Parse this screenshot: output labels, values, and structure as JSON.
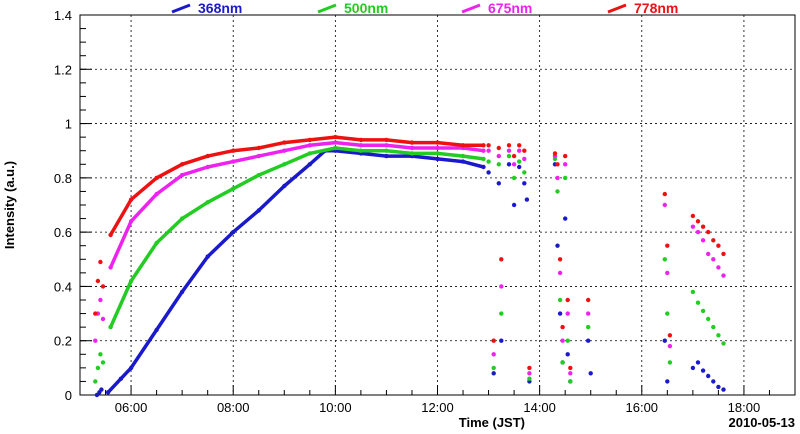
{
  "chart_data": {
    "type": "scatter",
    "title": "",
    "xlabel": "Time (JST)",
    "ylabel": "Intensity (a.u.)",
    "date_label": "2010-05-13",
    "xlim": [
      5.0,
      19.0
    ],
    "ylim": [
      0,
      1.4
    ],
    "grid": true,
    "legend_position": "top",
    "x_ticks": [
      6,
      8,
      10,
      12,
      14,
      16,
      18
    ],
    "x_tick_labels": [
      "06:00",
      "08:00",
      "10:00",
      "12:00",
      "14:00",
      "16:00",
      "18:00"
    ],
    "y_ticks": [
      0,
      0.2,
      0.4,
      0.6,
      0.8,
      1.0,
      1.2,
      1.4
    ],
    "y_tick_labels": [
      "0",
      "0.2",
      "0.4",
      "0.6",
      "0.8",
      "1",
      "1.2",
      "1.4"
    ],
    "series": [
      {
        "name": "368nm",
        "color": "#1a1acc",
        "x": [
          5.33,
          5.38,
          5.42,
          5.55,
          5.8,
          6.0,
          6.5,
          7.0,
          7.5,
          8.0,
          8.5,
          9.0,
          9.5,
          9.8,
          10.0,
          10.5,
          11.0,
          11.5,
          12.0,
          12.5,
          12.9,
          13.0,
          13.1,
          13.2,
          13.25,
          13.4,
          13.5,
          13.6,
          13.7,
          13.75,
          13.8,
          14.3,
          14.35,
          14.4,
          14.45,
          14.5,
          14.55,
          14.6,
          14.95,
          15.0,
          16.45,
          16.5,
          17.0,
          17.1,
          17.2,
          17.3,
          17.4,
          17.5,
          17.6
        ],
        "y": [
          0.0,
          0.01,
          0.02,
          0.01,
          0.06,
          0.1,
          0.24,
          0.38,
          0.51,
          0.6,
          0.68,
          0.77,
          0.85,
          0.9,
          0.9,
          0.89,
          0.88,
          0.88,
          0.87,
          0.86,
          0.84,
          0.82,
          0.08,
          0.78,
          0.2,
          0.85,
          0.7,
          0.84,
          0.78,
          0.72,
          0.05,
          0.85,
          0.55,
          0.3,
          0.12,
          0.65,
          0.15,
          0.05,
          0.2,
          0.08,
          0.2,
          0.05,
          0.1,
          0.12,
          0.09,
          0.07,
          0.05,
          0.03,
          0.02
        ]
      },
      {
        "name": "500nm",
        "color": "#22cc22",
        "x": [
          5.3,
          5.35,
          5.4,
          5.45,
          5.6,
          6.0,
          6.5,
          7.0,
          7.5,
          8.0,
          8.5,
          9.0,
          9.5,
          10.0,
          10.5,
          11.0,
          11.5,
          12.0,
          12.5,
          12.9,
          13.0,
          13.1,
          13.2,
          13.25,
          13.4,
          13.5,
          13.6,
          13.7,
          13.8,
          14.3,
          14.35,
          14.4,
          14.45,
          14.5,
          14.55,
          14.6,
          14.95,
          16.45,
          16.5,
          16.55,
          17.0,
          17.1,
          17.2,
          17.3,
          17.4,
          17.5,
          17.6
        ],
        "y": [
          0.05,
          0.1,
          0.15,
          0.12,
          0.25,
          0.42,
          0.56,
          0.65,
          0.71,
          0.76,
          0.81,
          0.85,
          0.89,
          0.91,
          0.9,
          0.9,
          0.89,
          0.89,
          0.88,
          0.87,
          0.86,
          0.1,
          0.85,
          0.3,
          0.88,
          0.8,
          0.86,
          0.82,
          0.06,
          0.87,
          0.75,
          0.35,
          0.12,
          0.8,
          0.2,
          0.05,
          0.25,
          0.5,
          0.3,
          0.12,
          0.38,
          0.34,
          0.31,
          0.28,
          0.25,
          0.22,
          0.19
        ]
      },
      {
        "name": "675nm",
        "color": "#ee22ee",
        "x": [
          5.3,
          5.35,
          5.4,
          5.45,
          5.6,
          6.0,
          6.5,
          7.0,
          7.5,
          8.0,
          8.5,
          9.0,
          9.5,
          10.0,
          10.5,
          11.0,
          11.5,
          12.0,
          12.5,
          12.9,
          13.0,
          13.1,
          13.2,
          13.25,
          13.4,
          13.5,
          13.6,
          13.7,
          13.8,
          14.3,
          14.35,
          14.4,
          14.45,
          14.5,
          14.55,
          14.6,
          14.95,
          16.45,
          16.5,
          16.55,
          17.0,
          17.1,
          17.2,
          17.3,
          17.4,
          17.5,
          17.6
        ],
        "y": [
          0.2,
          0.3,
          0.35,
          0.28,
          0.47,
          0.64,
          0.74,
          0.81,
          0.84,
          0.86,
          0.88,
          0.9,
          0.92,
          0.93,
          0.92,
          0.92,
          0.91,
          0.91,
          0.91,
          0.9,
          0.9,
          0.15,
          0.88,
          0.4,
          0.9,
          0.85,
          0.9,
          0.87,
          0.08,
          0.88,
          0.8,
          0.45,
          0.2,
          0.85,
          0.3,
          0.08,
          0.3,
          0.7,
          0.45,
          0.18,
          0.62,
          0.6,
          0.57,
          0.52,
          0.5,
          0.47,
          0.44
        ]
      },
      {
        "name": "778nm",
        "color": "#ee1111",
        "x": [
          5.3,
          5.35,
          5.4,
          5.45,
          5.6,
          6.0,
          6.5,
          7.0,
          7.5,
          8.0,
          8.5,
          9.0,
          9.5,
          10.0,
          10.5,
          11.0,
          11.5,
          12.0,
          12.5,
          12.9,
          13.0,
          13.1,
          13.2,
          13.25,
          13.4,
          13.5,
          13.6,
          13.7,
          13.8,
          14.3,
          14.35,
          14.4,
          14.45,
          14.5,
          14.55,
          14.6,
          14.95,
          16.45,
          16.5,
          16.55,
          17.0,
          17.1,
          17.2,
          17.3,
          17.4,
          17.5,
          17.6
        ],
        "y": [
          0.3,
          0.42,
          0.49,
          0.4,
          0.59,
          0.72,
          0.8,
          0.85,
          0.88,
          0.9,
          0.91,
          0.93,
          0.94,
          0.95,
          0.94,
          0.94,
          0.93,
          0.93,
          0.92,
          0.92,
          0.92,
          0.2,
          0.91,
          0.5,
          0.92,
          0.88,
          0.92,
          0.9,
          0.1,
          0.89,
          0.85,
          0.5,
          0.25,
          0.88,
          0.35,
          0.1,
          0.35,
          0.74,
          0.55,
          0.22,
          0.66,
          0.64,
          0.62,
          0.6,
          0.57,
          0.55,
          0.52
        ]
      }
    ]
  }
}
